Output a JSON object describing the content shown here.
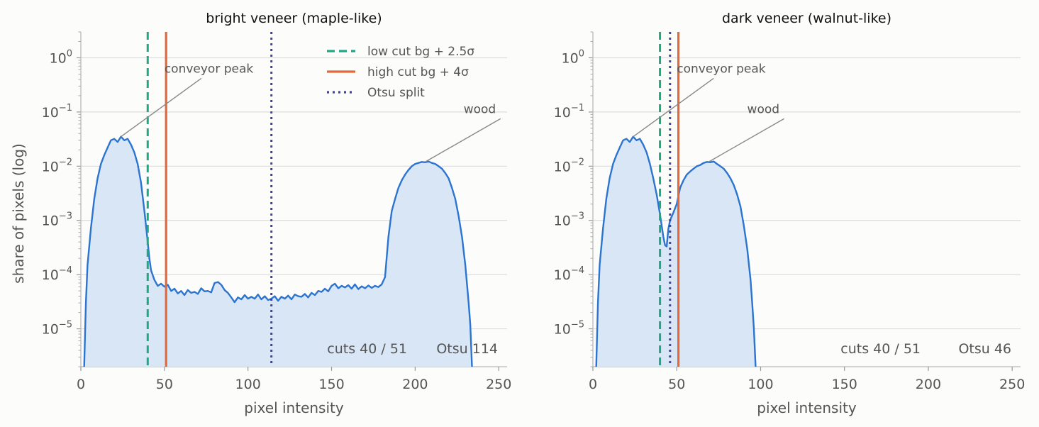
{
  "chart_data": [
    {
      "type": "area",
      "title": "bright veneer  (maple-like)",
      "xlabel": "pixel intensity",
      "ylabel": "share of pixels (log)",
      "xlim": [
        0,
        255
      ],
      "ylim": [
        2e-06,
        3
      ],
      "yscale": "log",
      "grid": true,
      "x_ticks": [
        "0",
        "50",
        "100",
        "150",
        "200",
        "250"
      ],
      "y_ticks": [
        {
          "base": "10",
          "exp": "0"
        },
        {
          "base": "10",
          "exp": "−1"
        },
        {
          "base": "10",
          "exp": "−2"
        },
        {
          "base": "10",
          "exp": "−3"
        },
        {
          "base": "10",
          "exp": "−4"
        },
        {
          "base": "10",
          "exp": "−5"
        }
      ],
      "line_color": "#2b74cf",
      "fill_color": "#d9e6f6",
      "x": [
        2,
        3,
        4,
        6,
        8,
        10,
        12,
        14,
        16,
        18,
        20,
        22,
        24,
        26,
        28,
        30,
        32,
        34,
        36,
        38,
        40,
        41,
        42,
        44,
        46,
        48,
        50,
        52,
        54,
        56,
        58,
        60,
        62,
        64,
        66,
        68,
        70,
        72,
        74,
        76,
        78,
        80,
        82,
        84,
        86,
        88,
        90,
        92,
        94,
        96,
        98,
        100,
        102,
        104,
        106,
        108,
        110,
        112,
        114,
        116,
        118,
        120,
        122,
        124,
        126,
        128,
        130,
        132,
        134,
        136,
        138,
        140,
        142,
        144,
        146,
        148,
        150,
        152,
        154,
        156,
        158,
        160,
        162,
        164,
        166,
        168,
        170,
        172,
        174,
        176,
        178,
        180,
        182,
        184,
        186,
        188,
        190,
        192,
        194,
        196,
        198,
        200,
        202,
        204,
        206,
        208,
        210,
        212,
        214,
        216,
        218,
        220,
        222,
        224,
        226,
        228,
        230,
        232,
        233,
        234
      ],
      "y": [
        2e-06,
        3e-05,
        0.00015,
        0.0007,
        0.0025,
        0.006,
        0.011,
        0.016,
        0.022,
        0.03,
        0.032,
        0.028,
        0.035,
        0.03,
        0.032,
        0.025,
        0.018,
        0.011,
        0.005,
        0.0015,
        0.0004,
        0.0002,
        0.00012,
        8e-05,
        6.2e-05,
        6.8e-05,
        6e-05,
        6.5e-05,
        5e-05,
        5.5e-05,
        4.5e-05,
        5e-05,
        4.2e-05,
        5.2e-05,
        4.6e-05,
        4.8e-05,
        4.4e-05,
        5.6e-05,
        4.9e-05,
        5e-05,
        4.7e-05,
        7e-05,
        7.3e-05,
        6.5e-05,
        5.2e-05,
        4.6e-05,
        3.8e-05,
        3.1e-05,
        3.8e-05,
        3.5e-05,
        4.2e-05,
        3.6e-05,
        3.9e-05,
        3.6e-05,
        4.3e-05,
        3.5e-05,
        4e-05,
        3.4e-05,
        3.6e-05,
        4e-05,
        3.3e-05,
        3.9e-05,
        3.6e-05,
        4.1e-05,
        3.5e-05,
        4.3e-05,
        4e-05,
        3.9e-05,
        4.4e-05,
        3.8e-05,
        4.6e-05,
        4.2e-05,
        5e-05,
        4.8e-05,
        5.5e-05,
        4.9e-05,
        6.2e-05,
        6.8e-05,
        5.6e-05,
        6.2e-05,
        5.8e-05,
        6.4e-05,
        5.5e-05,
        6.6e-05,
        5.4e-05,
        6.1e-05,
        5.6e-05,
        6.3e-05,
        5.7e-05,
        6.2e-05,
        5.9e-05,
        6.6e-05,
        9e-05,
        0.0005,
        0.0015,
        0.0025,
        0.004,
        0.0055,
        0.007,
        0.0085,
        0.01,
        0.011,
        0.0115,
        0.012,
        0.0118,
        0.0122,
        0.0115,
        0.011,
        0.01,
        0.009,
        0.0075,
        0.006,
        0.004,
        0.0025,
        0.0012,
        0.0005,
        0.00015,
        3e-05,
        1.2e-05,
        2e-06
      ],
      "thresholds": [
        {
          "name": "low cut  bg + 2.5σ",
          "x": 40,
          "style": "dashed",
          "color": "#1fa882"
        },
        {
          "name": "high cut  bg + 4σ",
          "x": 51,
          "style": "solid",
          "color": "#e2693c"
        },
        {
          "name": "Otsu split",
          "x": 114,
          "style": "dotted",
          "color": "#3f3fae"
        }
      ],
      "annotations": [
        {
          "text": "conveyor peak",
          "target": [
            24,
            0.035
          ],
          "text_at": [
            50,
            0.5
          ]
        },
        {
          "text": "wood",
          "target": [
            206,
            0.012
          ],
          "text_at": [
            229,
            0.09
          ]
        }
      ],
      "footer": {
        "cuts": "cuts 40 / 51",
        "otsu": "Otsu 114"
      },
      "legend_position": "top-right"
    },
    {
      "type": "area",
      "title": "dark veneer  (walnut-like)",
      "xlabel": "pixel intensity",
      "ylabel": "",
      "xlim": [
        0,
        255
      ],
      "ylim": [
        2e-06,
        3
      ],
      "yscale": "log",
      "grid": true,
      "x_ticks": [
        "0",
        "50",
        "100",
        "150",
        "200",
        "250"
      ],
      "y_ticks": [
        {
          "base": "10",
          "exp": "0"
        },
        {
          "base": "10",
          "exp": "−1"
        },
        {
          "base": "10",
          "exp": "−2"
        },
        {
          "base": "10",
          "exp": "−3"
        },
        {
          "base": "10",
          "exp": "−4"
        },
        {
          "base": "10",
          "exp": "−5"
        }
      ],
      "line_color": "#2b74cf",
      "fill_color": "#d9e6f6",
      "x": [
        2,
        3,
        4,
        6,
        8,
        10,
        12,
        14,
        16,
        18,
        20,
        22,
        24,
        26,
        28,
        30,
        32,
        34,
        36,
        38,
        40,
        42,
        43,
        44,
        45,
        46,
        48,
        50,
        52,
        54,
        56,
        58,
        60,
        62,
        64,
        66,
        68,
        70,
        72,
        74,
        76,
        78,
        80,
        82,
        84,
        86,
        88,
        90,
        92,
        94,
        95,
        96,
        97
      ],
      "y": [
        2e-06,
        3e-05,
        0.00015,
        0.0007,
        0.0025,
        0.006,
        0.011,
        0.016,
        0.022,
        0.03,
        0.032,
        0.028,
        0.035,
        0.03,
        0.032,
        0.025,
        0.018,
        0.011,
        0.006,
        0.003,
        0.0013,
        0.0005,
        0.00035,
        0.00033,
        0.0007,
        0.001,
        0.0014,
        0.002,
        0.004,
        0.0055,
        0.007,
        0.008,
        0.009,
        0.01,
        0.0105,
        0.0115,
        0.012,
        0.0118,
        0.0122,
        0.011,
        0.01,
        0.009,
        0.0075,
        0.006,
        0.0045,
        0.003,
        0.0018,
        0.0008,
        0.0003,
        8e-05,
        3e-05,
        1e-05,
        2e-06
      ],
      "thresholds": [
        {
          "name": "low cut  bg + 2.5σ",
          "x": 40,
          "style": "dashed",
          "color": "#1fa882"
        },
        {
          "name": "high cut  bg + 4σ",
          "x": 51,
          "style": "solid",
          "color": "#e2693c"
        },
        {
          "name": "Otsu split",
          "x": 46,
          "style": "dotted",
          "color": "#3f3fae"
        }
      ],
      "annotations": [
        {
          "text": "conveyor peak",
          "target": [
            24,
            0.035
          ],
          "text_at": [
            50,
            0.5
          ]
        },
        {
          "text": "wood",
          "target": [
            69,
            0.012
          ],
          "text_at": [
            92,
            0.09
          ]
        }
      ],
      "footer": {
        "cuts": "cuts 40 / 51",
        "otsu": "Otsu 46"
      }
    }
  ]
}
